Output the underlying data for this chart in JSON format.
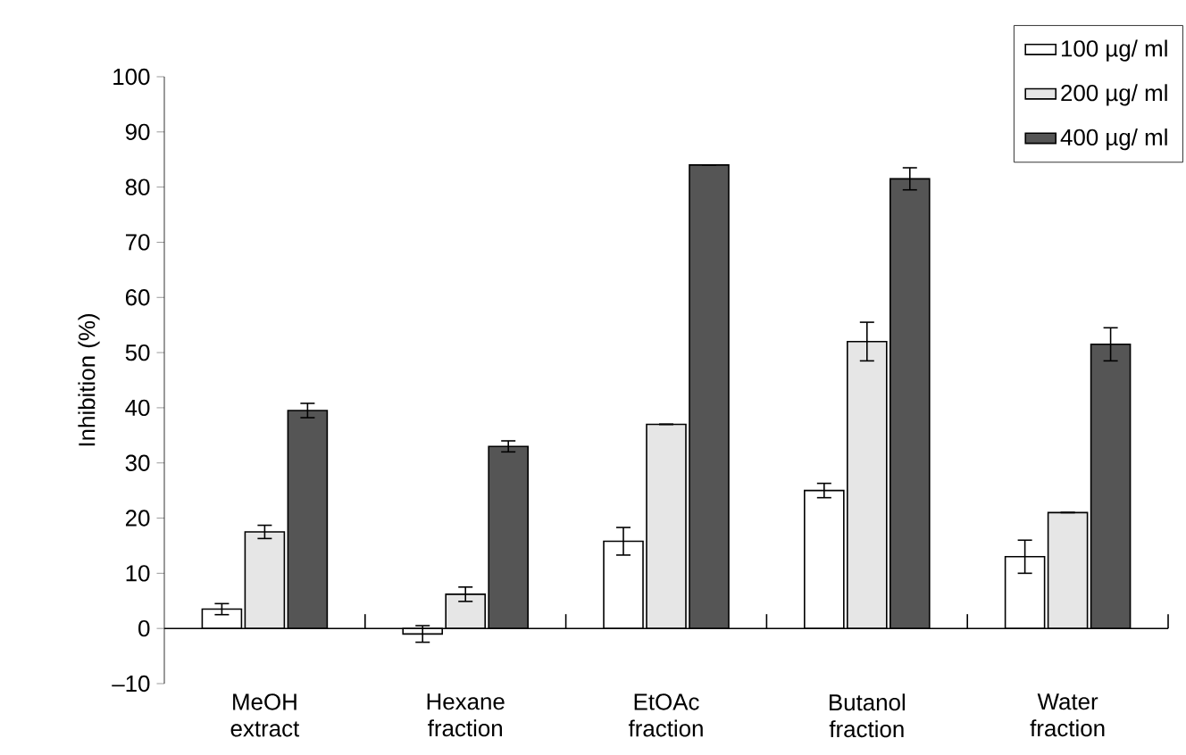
{
  "chart_data": {
    "type": "bar",
    "ylabel": "Inhibition (%)",
    "categories": [
      "MeOH extract",
      "Hexane fraction",
      "EtOAc fraction",
      "Butanol fraction",
      "Water fraction"
    ],
    "series": [
      {
        "name": "100 µg/ ml",
        "color": "#ffffff",
        "values": [
          3.5,
          -1,
          15.8,
          25,
          13
        ],
        "errors": [
          1,
          1.5,
          2.5,
          1.3,
          3
        ]
      },
      {
        "name": "200 µg/ ml",
        "color": "#e6e6e6",
        "values": [
          17.5,
          6.2,
          37,
          52,
          21
        ],
        "errors": [
          1.2,
          1.3,
          null,
          3.5,
          null
        ]
      },
      {
        "name": "400 µg/ ml",
        "color": "#555555",
        "values": [
          39.5,
          33,
          84,
          81.5,
          51.5
        ],
        "errors": [
          1.3,
          1,
          null,
          2,
          3
        ]
      }
    ],
    "ylim": [
      -10,
      100
    ],
    "yticks": [
      {
        "value": -10,
        "label": "–10"
      },
      0,
      10,
      20,
      30,
      40,
      50,
      60,
      70,
      80,
      90,
      100
    ],
    "legend": "top right"
  }
}
